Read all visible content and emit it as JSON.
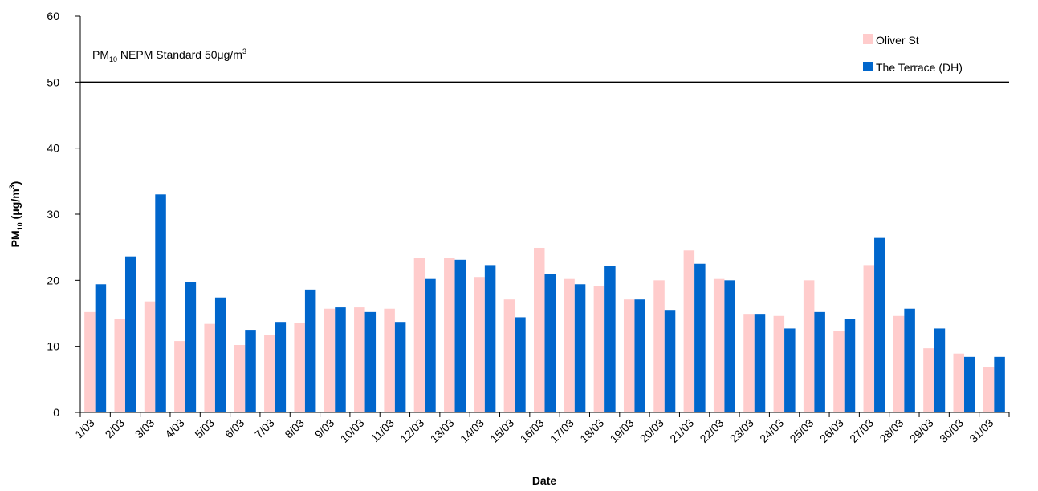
{
  "chart_data": {
    "type": "bar",
    "categories": [
      "1/03",
      "2/03",
      "3/03",
      "4/03",
      "5/03",
      "6/03",
      "7/03",
      "8/03",
      "9/03",
      "10/03",
      "11/03",
      "12/03",
      "13/03",
      "14/03",
      "15/03",
      "16/03",
      "17/03",
      "18/03",
      "19/03",
      "20/03",
      "21/03",
      "22/03",
      "23/03",
      "24/03",
      "25/03",
      "26/03",
      "27/03",
      "28/03",
      "29/03",
      "30/03",
      "31/03"
    ],
    "series": [
      {
        "name": "Oliver St",
        "color": "#ffcccc",
        "values": [
          15.2,
          14.2,
          16.8,
          10.8,
          13.4,
          10.2,
          11.7,
          13.6,
          15.7,
          15.9,
          15.7,
          23.4,
          23.4,
          20.5,
          17.1,
          24.9,
          20.2,
          19.1,
          17.1,
          20.0,
          24.5,
          20.2,
          14.8,
          14.6,
          20.0,
          12.3,
          22.3,
          14.6,
          9.7,
          8.9,
          6.9
        ]
      },
      {
        "name": "The Terrace (DH)",
        "color": "#0066cc",
        "values": [
          19.4,
          23.6,
          33.0,
          19.7,
          17.4,
          12.5,
          13.7,
          18.6,
          15.9,
          15.2,
          13.7,
          20.2,
          23.1,
          22.3,
          14.4,
          21.0,
          19.4,
          22.2,
          17.1,
          15.4,
          22.5,
          20.0,
          14.8,
          12.7,
          15.2,
          14.2,
          26.4,
          15.7,
          12.7,
          8.4,
          8.4
        ]
      }
    ],
    "reference_line": {
      "value": 50,
      "label_parts": [
        "PM",
        "10",
        " NEPM Standard 50",
        "μ",
        "g/m",
        "3"
      ]
    },
    "xlabel": "Date",
    "ylabel_parts": [
      "PM",
      "10",
      " (",
      "μ",
      "g/m",
      "3",
      ")"
    ],
    "ylim": [
      0,
      60
    ],
    "yticks": [
      "0",
      "10",
      "20",
      "30",
      "40",
      "50",
      "60"
    ],
    "grid": false,
    "legend_position": "top-right"
  }
}
